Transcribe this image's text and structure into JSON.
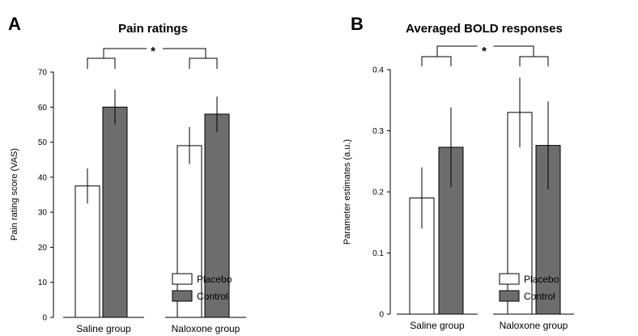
{
  "chart_data": [
    {
      "panel_label": "A",
      "type": "bar",
      "title": "Pain ratings",
      "xlabel": "",
      "ylabel": "Pain rating score (VAS)",
      "ylim": [
        0,
        70
      ],
      "yticks": [
        "0",
        "10",
        "20",
        "30",
        "40",
        "50",
        "60",
        "70"
      ],
      "categories": [
        "Saline group",
        "Naloxone group"
      ],
      "series": [
        {
          "name": "Placebo",
          "values": [
            37.5,
            49
          ],
          "errors": [
            5,
            5.3
          ],
          "color": "#ffffff"
        },
        {
          "name": "Control",
          "values": [
            60,
            58
          ],
          "errors": [
            5,
            5
          ],
          "color": "#6d6d6d"
        }
      ],
      "significance": "*",
      "legend_position": "bottom-right",
      "grid": false
    },
    {
      "panel_label": "B",
      "type": "bar",
      "title": "Averaged BOLD responses",
      "xlabel": "",
      "ylabel": "Parameter estimates (a.u.)",
      "ylim": [
        0,
        0.4
      ],
      "yticks": [
        "0",
        "0.1",
        "0.2",
        "0.3",
        "0.4"
      ],
      "categories": [
        "Saline group",
        "Naloxone group"
      ],
      "series": [
        {
          "name": "Placebo",
          "values": [
            0.19,
            0.33
          ],
          "errors": [
            0.05,
            0.057
          ],
          "color": "#ffffff"
        },
        {
          "name": "Control",
          "values": [
            0.273,
            0.276
          ],
          "errors": [
            0.065,
            0.072
          ],
          "color": "#6d6d6d"
        }
      ],
      "significance": "*",
      "legend_position": "bottom-right",
      "grid": false
    }
  ]
}
